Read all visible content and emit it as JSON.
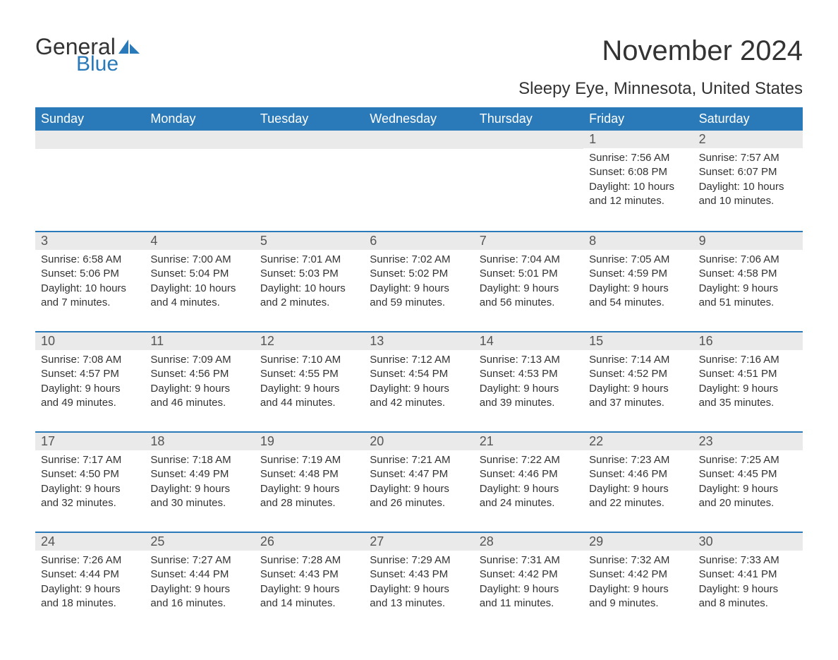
{
  "logo": {
    "text1": "General",
    "text2": "Blue",
    "icon_color": "#2a7ab9"
  },
  "title": "November 2024",
  "location": "Sleepy Eye, Minnesota, United States",
  "colors": {
    "header_bg": "#2a7ab9",
    "header_text": "#ffffff",
    "daynum_bg": "#eaeaea",
    "daynum_border": "#2a7ab9",
    "body_text": "#333333",
    "page_bg": "#ffffff"
  },
  "days_of_week": [
    "Sunday",
    "Monday",
    "Tuesday",
    "Wednesday",
    "Thursday",
    "Friday",
    "Saturday"
  ],
  "weeks": [
    [
      null,
      null,
      null,
      null,
      null,
      {
        "n": "1",
        "sunrise": "7:56 AM",
        "sunset": "6:08 PM",
        "daylight": "10 hours and 12 minutes."
      },
      {
        "n": "2",
        "sunrise": "7:57 AM",
        "sunset": "6:07 PM",
        "daylight": "10 hours and 10 minutes."
      }
    ],
    [
      {
        "n": "3",
        "sunrise": "6:58 AM",
        "sunset": "5:06 PM",
        "daylight": "10 hours and 7 minutes."
      },
      {
        "n": "4",
        "sunrise": "7:00 AM",
        "sunset": "5:04 PM",
        "daylight": "10 hours and 4 minutes."
      },
      {
        "n": "5",
        "sunrise": "7:01 AM",
        "sunset": "5:03 PM",
        "daylight": "10 hours and 2 minutes."
      },
      {
        "n": "6",
        "sunrise": "7:02 AM",
        "sunset": "5:02 PM",
        "daylight": "9 hours and 59 minutes."
      },
      {
        "n": "7",
        "sunrise": "7:04 AM",
        "sunset": "5:01 PM",
        "daylight": "9 hours and 56 minutes."
      },
      {
        "n": "8",
        "sunrise": "7:05 AM",
        "sunset": "4:59 PM",
        "daylight": "9 hours and 54 minutes."
      },
      {
        "n": "9",
        "sunrise": "7:06 AM",
        "sunset": "4:58 PM",
        "daylight": "9 hours and 51 minutes."
      }
    ],
    [
      {
        "n": "10",
        "sunrise": "7:08 AM",
        "sunset": "4:57 PM",
        "daylight": "9 hours and 49 minutes."
      },
      {
        "n": "11",
        "sunrise": "7:09 AM",
        "sunset": "4:56 PM",
        "daylight": "9 hours and 46 minutes."
      },
      {
        "n": "12",
        "sunrise": "7:10 AM",
        "sunset": "4:55 PM",
        "daylight": "9 hours and 44 minutes."
      },
      {
        "n": "13",
        "sunrise": "7:12 AM",
        "sunset": "4:54 PM",
        "daylight": "9 hours and 42 minutes."
      },
      {
        "n": "14",
        "sunrise": "7:13 AM",
        "sunset": "4:53 PM",
        "daylight": "9 hours and 39 minutes."
      },
      {
        "n": "15",
        "sunrise": "7:14 AM",
        "sunset": "4:52 PM",
        "daylight": "9 hours and 37 minutes."
      },
      {
        "n": "16",
        "sunrise": "7:16 AM",
        "sunset": "4:51 PM",
        "daylight": "9 hours and 35 minutes."
      }
    ],
    [
      {
        "n": "17",
        "sunrise": "7:17 AM",
        "sunset": "4:50 PM",
        "daylight": "9 hours and 32 minutes."
      },
      {
        "n": "18",
        "sunrise": "7:18 AM",
        "sunset": "4:49 PM",
        "daylight": "9 hours and 30 minutes."
      },
      {
        "n": "19",
        "sunrise": "7:19 AM",
        "sunset": "4:48 PM",
        "daylight": "9 hours and 28 minutes."
      },
      {
        "n": "20",
        "sunrise": "7:21 AM",
        "sunset": "4:47 PM",
        "daylight": "9 hours and 26 minutes."
      },
      {
        "n": "21",
        "sunrise": "7:22 AM",
        "sunset": "4:46 PM",
        "daylight": "9 hours and 24 minutes."
      },
      {
        "n": "22",
        "sunrise": "7:23 AM",
        "sunset": "4:46 PM",
        "daylight": "9 hours and 22 minutes."
      },
      {
        "n": "23",
        "sunrise": "7:25 AM",
        "sunset": "4:45 PM",
        "daylight": "9 hours and 20 minutes."
      }
    ],
    [
      {
        "n": "24",
        "sunrise": "7:26 AM",
        "sunset": "4:44 PM",
        "daylight": "9 hours and 18 minutes."
      },
      {
        "n": "25",
        "sunrise": "7:27 AM",
        "sunset": "4:44 PM",
        "daylight": "9 hours and 16 minutes."
      },
      {
        "n": "26",
        "sunrise": "7:28 AM",
        "sunset": "4:43 PM",
        "daylight": "9 hours and 14 minutes."
      },
      {
        "n": "27",
        "sunrise": "7:29 AM",
        "sunset": "4:43 PM",
        "daylight": "9 hours and 13 minutes."
      },
      {
        "n": "28",
        "sunrise": "7:31 AM",
        "sunset": "4:42 PM",
        "daylight": "9 hours and 11 minutes."
      },
      {
        "n": "29",
        "sunrise": "7:32 AM",
        "sunset": "4:42 PM",
        "daylight": "9 hours and 9 minutes."
      },
      {
        "n": "30",
        "sunrise": "7:33 AM",
        "sunset": "4:41 PM",
        "daylight": "9 hours and 8 minutes."
      }
    ]
  ],
  "labels": {
    "sunrise": "Sunrise: ",
    "sunset": "Sunset: ",
    "daylight": "Daylight: "
  }
}
